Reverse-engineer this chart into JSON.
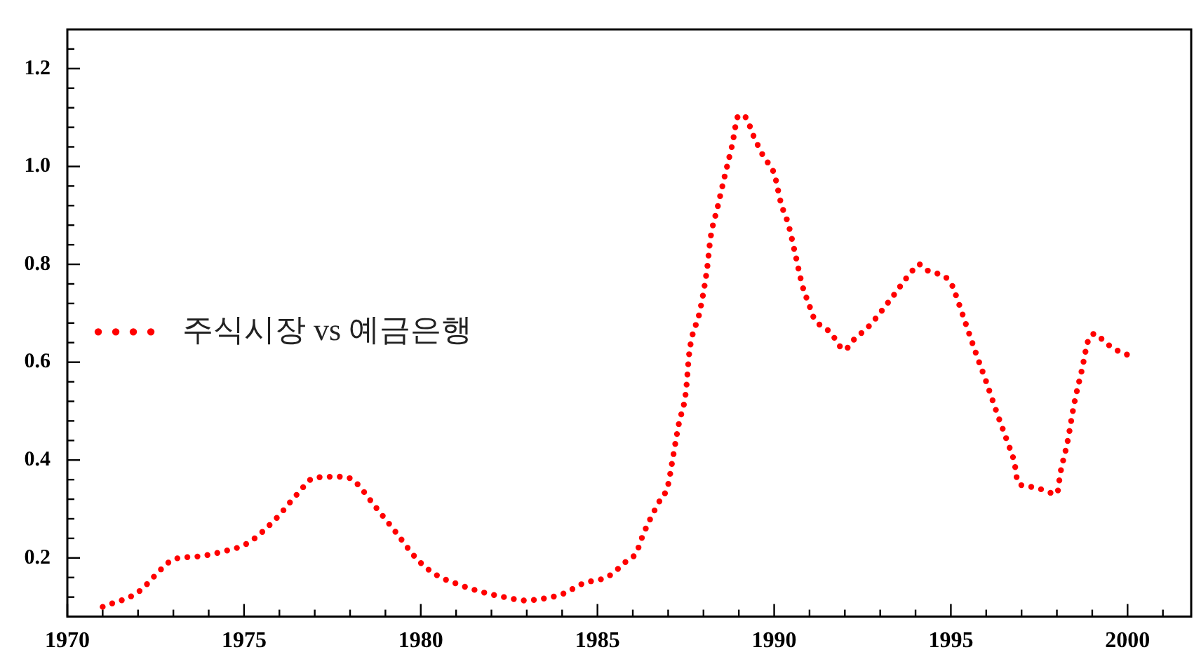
{
  "chart_data": {
    "type": "line",
    "x": [
      1971,
      1972,
      1972.7,
      1973,
      1973.7,
      1974.4,
      1975.1,
      1975.9,
      1976.5,
      1977,
      1977.8,
      1978.1,
      1978.7,
      1979.3,
      1979.9,
      1980.4,
      1981.1,
      1981.8,
      1982.5,
      1982.9,
      1983.3,
      1984,
      1984.6,
      1985.3,
      1985.8,
      1986.1,
      1986.3,
      1986.7,
      1987,
      1987.1,
      1987.3,
      1987.5,
      1987.6,
      1987.9,
      1988.1,
      1988.2,
      1988.4,
      1988.6,
      1988.8,
      1989,
      1989.2,
      1989.4,
      1989.7,
      1990,
      1990.2,
      1990.4,
      1990.6,
      1990.8,
      1991,
      1991.1,
      1991.6,
      1992,
      1992.2,
      1992.7,
      1993.3,
      1993.9,
      1994.1,
      1994.3,
      1995,
      1995.1,
      1995.4,
      1995.7,
      1996,
      1996.3,
      1996.6,
      1996.8,
      1996.9,
      1997.3,
      1998,
      1998.1,
      1998.3,
      1998.5,
      1998.7,
      1998.9,
      1999.1,
      1999.3,
      1999.6,
      2000
    ],
    "series": [
      {
        "name": "주식시장 vs 예금은행",
        "color": "#ff0000",
        "values": [
          0.1,
          0.13,
          0.18,
          0.197,
          0.203,
          0.213,
          0.23,
          0.28,
          0.33,
          0.364,
          0.366,
          0.358,
          0.306,
          0.252,
          0.197,
          0.167,
          0.145,
          0.129,
          0.118,
          0.113,
          0.115,
          0.126,
          0.148,
          0.162,
          0.192,
          0.211,
          0.249,
          0.309,
          0.35,
          0.39,
          0.473,
          0.538,
          0.62,
          0.705,
          0.79,
          0.854,
          0.917,
          0.98,
          1.04,
          1.105,
          1.1,
          1.065,
          1.02,
          0.985,
          0.923,
          0.882,
          0.82,
          0.756,
          0.715,
          0.694,
          0.66,
          0.625,
          0.642,
          0.675,
          0.729,
          0.786,
          0.8,
          0.789,
          0.762,
          0.745,
          0.683,
          0.62,
          0.56,
          0.497,
          0.437,
          0.394,
          0.353,
          0.345,
          0.331,
          0.374,
          0.437,
          0.519,
          0.582,
          0.647,
          0.658,
          0.645,
          0.628,
          0.615
        ]
      }
    ],
    "xlim": [
      1970,
      2001.8
    ],
    "xticks": [
      1970,
      {
        "value": 1971,
        "label": null
      },
      {
        "value": 1972,
        "label": null
      },
      {
        "value": 1973,
        "label": null
      },
      {
        "value": 1974,
        "label": null
      },
      1975,
      {
        "value": 1976,
        "label": null
      },
      {
        "value": 1977,
        "label": null
      },
      {
        "value": 1978,
        "label": null
      },
      {
        "value": 1979,
        "label": null
      },
      1980,
      {
        "value": 1981,
        "label": null
      },
      {
        "value": 1982,
        "label": null
      },
      {
        "value": 1983,
        "label": null
      },
      {
        "value": 1984,
        "label": null
      },
      1985,
      {
        "value": 1986,
        "label": null
      },
      {
        "value": 1987,
        "label": null
      },
      {
        "value": 1988,
        "label": null
      },
      {
        "value": 1989,
        "label": null
      },
      1990,
      {
        "value": 1991,
        "label": null
      },
      {
        "value": 1992,
        "label": null
      },
      {
        "value": 1993,
        "label": null
      },
      {
        "value": 1994,
        "label": null
      },
      1995,
      {
        "value": 1996,
        "label": null
      },
      {
        "value": 1997,
        "label": null
      },
      {
        "value": 1998,
        "label": null
      },
      {
        "value": 1999,
        "label": null
      },
      2000,
      {
        "value": 2001,
        "label": null
      }
    ],
    "ylim": [
      0.08,
      1.28
    ],
    "yticks": [
      {
        "value": 0.12,
        "label": null
      },
      {
        "value": 0.16,
        "label": null
      },
      0.2,
      {
        "value": 0.24,
        "label": null
      },
      {
        "value": 0.28,
        "label": null
      },
      {
        "value": 0.32,
        "label": null
      },
      {
        "value": 0.36,
        "label": null
      },
      0.4,
      {
        "value": 0.44,
        "label": null
      },
      {
        "value": 0.48,
        "label": null
      },
      {
        "value": 0.52,
        "label": null
      },
      {
        "value": 0.56,
        "label": null
      },
      0.6,
      {
        "value": 0.64,
        "label": null
      },
      {
        "value": 0.68,
        "label": null
      },
      {
        "value": 0.72,
        "label": null
      },
      {
        "value": 0.76,
        "label": null
      },
      0.8,
      {
        "value": 0.84,
        "label": null
      },
      {
        "value": 0.88,
        "label": null
      },
      {
        "value": 0.92,
        "label": null
      },
      {
        "value": 0.96,
        "label": null
      },
      {
        "value": 1.0,
        "label": "1.0"
      },
      {
        "value": 1.04,
        "label": null
      },
      {
        "value": 1.08,
        "label": null
      },
      {
        "value": 1.12,
        "label": null
      },
      {
        "value": 1.16,
        "label": null
      },
      1.2,
      {
        "value": 1.24,
        "label": null
      }
    ],
    "grid": false,
    "legend": "left",
    "line_style": "dotted",
    "marker": "none"
  }
}
